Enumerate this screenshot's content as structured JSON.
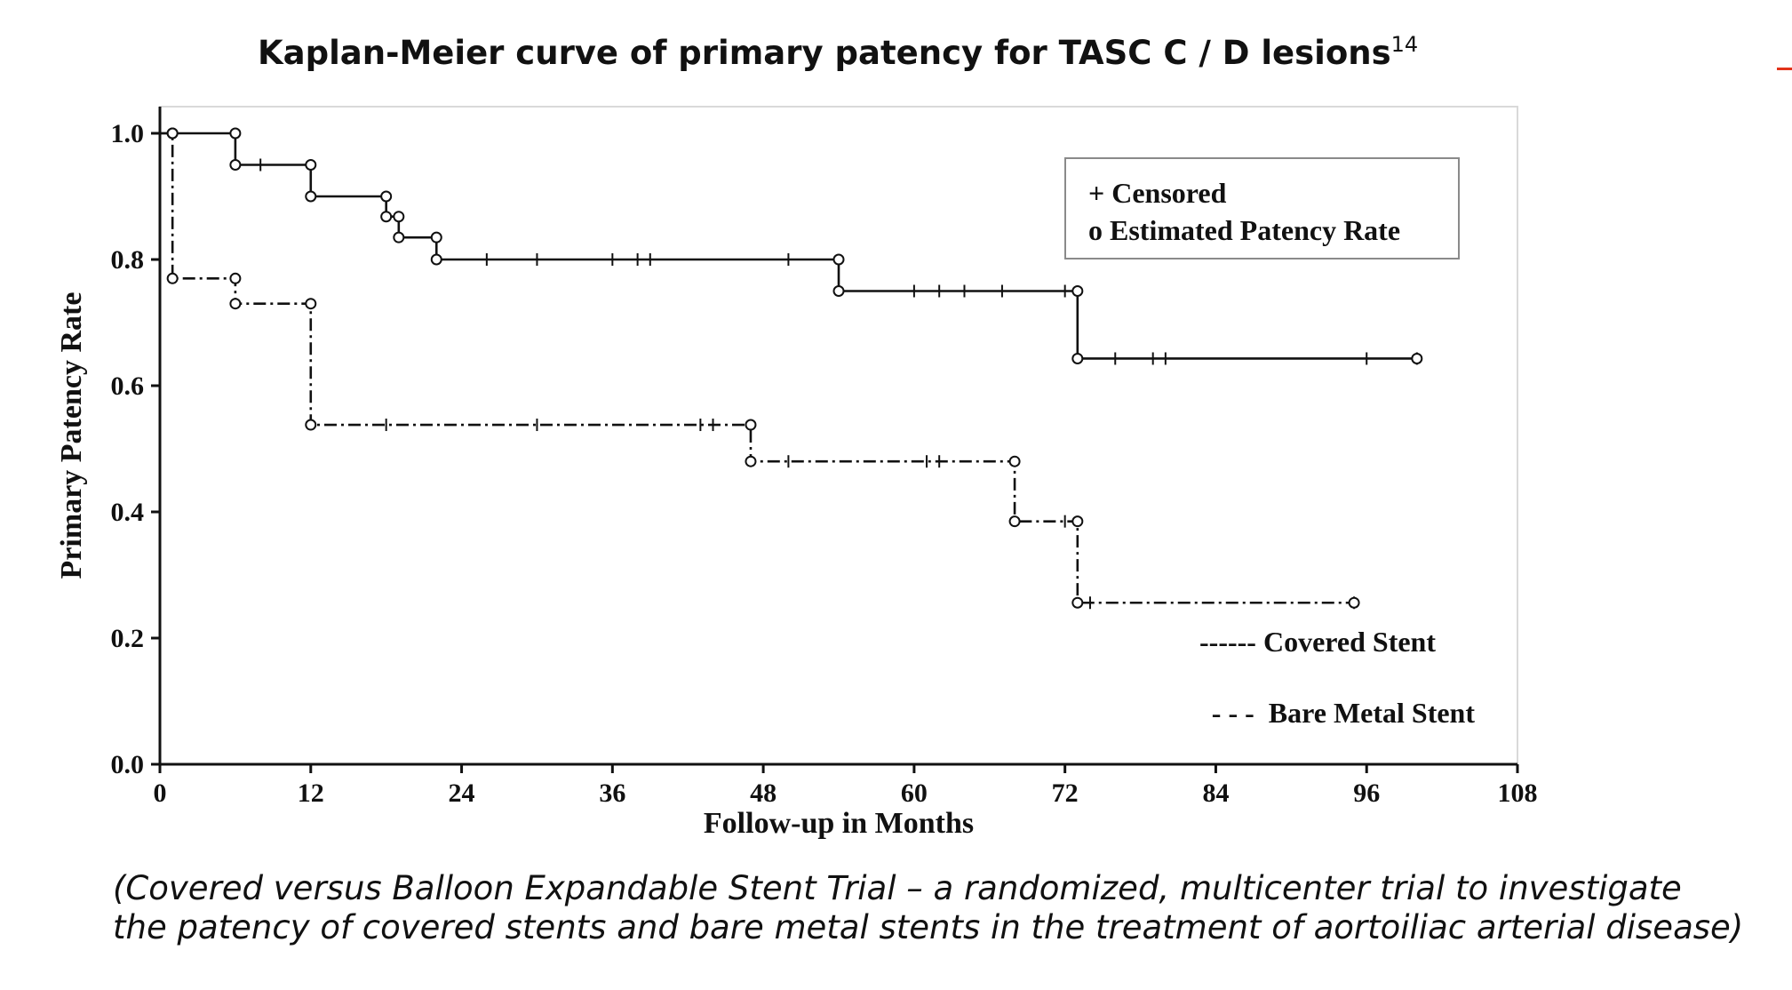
{
  "title": "Kaplan-Meier curve of primary patency for TASC C / D lesions",
  "title_ref": "14",
  "caption": [
    "(Covered versus Balloon Expandable Stent Trial – a randomized, multicenter trial to investigate",
    "the patency of covered stents and bare metal stents in the treatment of aortoiliac arterial disease)"
  ],
  "legend_box": [
    "+ Censored",
    "o Estimated Patency Rate"
  ],
  "accent_color": "#e2331a",
  "chart_data": {
    "type": "line",
    "step": true,
    "xlabel": "Follow-up in Months",
    "ylabel": "Primary Patency Rate",
    "xlim": [
      0,
      108
    ],
    "ylim": [
      0,
      1.05
    ],
    "xticks": [
      "0",
      "12",
      "24",
      "36",
      "48",
      "60",
      "72",
      "84",
      "96",
      "108"
    ],
    "yticks": [
      "0.0",
      "0.2",
      "0.4",
      "0.6",
      "0.8",
      "1.0"
    ],
    "grid": false,
    "legend_position": "inside-right",
    "series": [
      {
        "name": "Covered Stent",
        "legend_label": "------ Covered Stent",
        "line_style": "solid",
        "steps": [
          [
            0,
            1.0
          ],
          [
            6,
            0.95
          ],
          [
            12,
            0.9
          ],
          [
            18,
            0.868
          ],
          [
            19,
            0.835
          ],
          [
            22,
            0.8
          ],
          [
            54,
            0.75
          ],
          [
            73,
            0.643
          ],
          [
            100,
            0.643
          ]
        ],
        "events": [
          [
            1,
            1.0
          ],
          [
            6,
            1.0
          ],
          [
            6,
            0.95
          ],
          [
            12,
            0.95
          ],
          [
            12,
            0.9
          ],
          [
            18,
            0.9
          ],
          [
            18,
            0.868
          ],
          [
            19,
            0.868
          ],
          [
            19,
            0.835
          ],
          [
            22,
            0.835
          ],
          [
            22,
            0.8
          ],
          [
            54,
            0.8
          ],
          [
            54,
            0.75
          ],
          [
            73,
            0.75
          ],
          [
            73,
            0.643
          ],
          [
            100,
            0.643
          ]
        ],
        "censored": [
          [
            8,
            0.95
          ],
          [
            26,
            0.8
          ],
          [
            30,
            0.8
          ],
          [
            36,
            0.8
          ],
          [
            38,
            0.8
          ],
          [
            39,
            0.8
          ],
          [
            50,
            0.8
          ],
          [
            60,
            0.75
          ],
          [
            62,
            0.75
          ],
          [
            64,
            0.75
          ],
          [
            67,
            0.75
          ],
          [
            72,
            0.75
          ],
          [
            76,
            0.643
          ],
          [
            79,
            0.643
          ],
          [
            80,
            0.643
          ],
          [
            96,
            0.643
          ],
          [
            100,
            0.643
          ]
        ]
      },
      {
        "name": "Bare Metal Stent",
        "legend_label": "- - -  Bare Metal Stent",
        "line_style": "dashdot",
        "steps": [
          [
            0,
            1.0
          ],
          [
            1,
            0.77
          ],
          [
            6,
            0.73
          ],
          [
            12,
            0.538
          ],
          [
            47,
            0.48
          ],
          [
            68,
            0.385
          ],
          [
            73,
            0.256
          ],
          [
            95,
            0.256
          ]
        ],
        "events": [
          [
            1,
            1.0
          ],
          [
            1,
            0.77
          ],
          [
            6,
            0.77
          ],
          [
            6,
            0.73
          ],
          [
            12,
            0.73
          ],
          [
            12,
            0.538
          ],
          [
            47,
            0.538
          ],
          [
            47,
            0.48
          ],
          [
            68,
            0.48
          ],
          [
            68,
            0.385
          ],
          [
            73,
            0.385
          ],
          [
            73,
            0.256
          ],
          [
            95,
            0.256
          ]
        ],
        "censored": [
          [
            18,
            0.538
          ],
          [
            30,
            0.538
          ],
          [
            43,
            0.538
          ],
          [
            44,
            0.538
          ],
          [
            50,
            0.48
          ],
          [
            61,
            0.48
          ],
          [
            62,
            0.48
          ],
          [
            72,
            0.385
          ],
          [
            74,
            0.256
          ],
          [
            95,
            0.256
          ]
        ]
      }
    ]
  }
}
